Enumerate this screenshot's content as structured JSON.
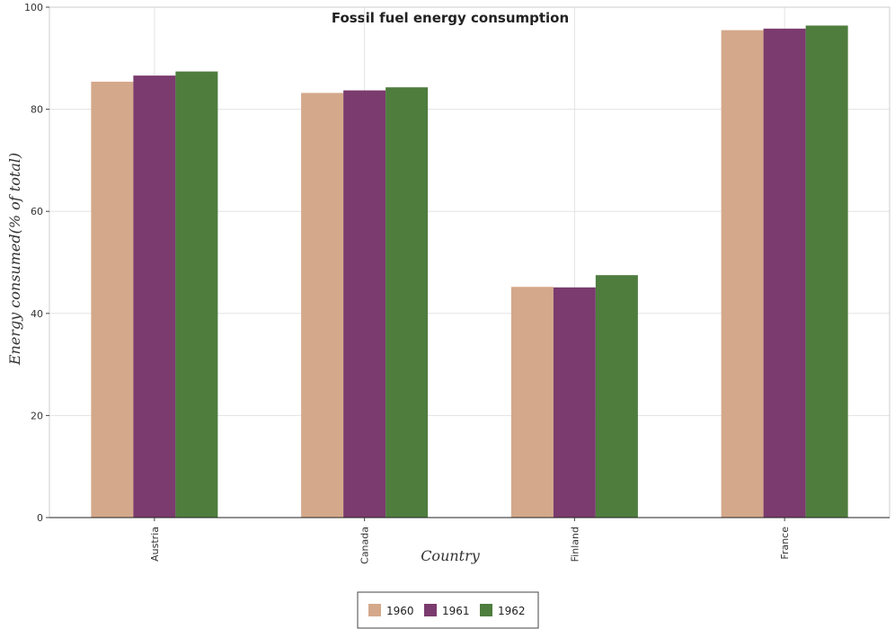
{
  "chart_data": {
    "type": "bar",
    "title": "Fossil fuel energy consumption",
    "xlabel": "Country",
    "ylabel": "Energy consumed(% of total)",
    "categories": [
      "Austria",
      "Canada",
      "Finland",
      "France"
    ],
    "series": [
      {
        "name": "1960",
        "color": "#d4a88a",
        "values": [
          85.4,
          83.2,
          45.2,
          95.5
        ]
      },
      {
        "name": "1961",
        "color": "#7b3b6e",
        "values": [
          86.6,
          83.7,
          45.1,
          95.8
        ]
      },
      {
        "name": "1962",
        "color": "#4e7d3e",
        "values": [
          87.4,
          84.3,
          47.5,
          96.4
        ]
      }
    ],
    "ylim": [
      0,
      100
    ],
    "yticks": [
      0,
      20,
      40,
      60,
      80,
      100
    ],
    "grid": true,
    "legend_position": "bottom-center"
  }
}
